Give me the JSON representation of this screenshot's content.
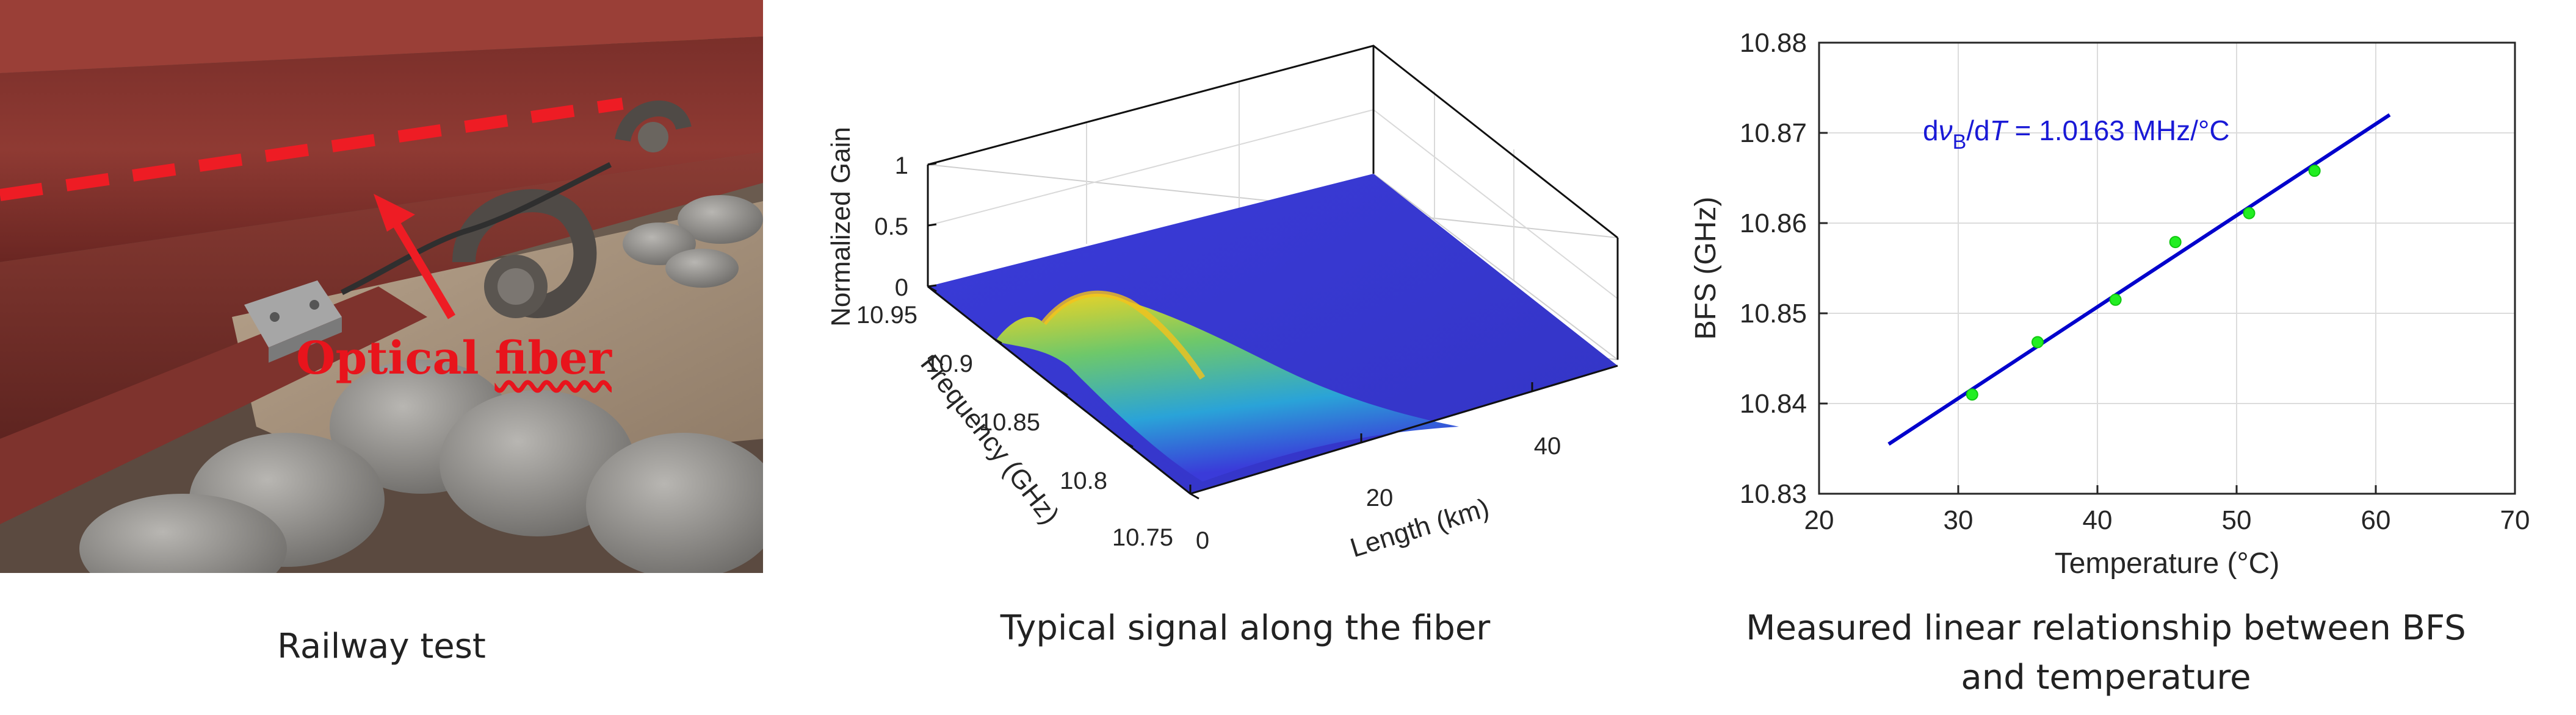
{
  "captions": {
    "left": "Railway test",
    "middle": "Typical signal along the fiber",
    "right_line1": "Measured linear relationship between BFS",
    "right_line2": "and temperature"
  },
  "photo": {
    "annotation": "Optical fiber",
    "annotation_plain": "Optical ",
    "annotation_underlined": "fiber",
    "annotation_color": "#e8141c"
  },
  "surface_plot": {
    "type": "3d-surface",
    "zlabel": "Normalized Gain",
    "ylabel": "Frequency (GHz)",
    "xlabel": "Length (km)",
    "z_ticks": [
      "0",
      "0.5",
      "1"
    ],
    "y_ticks": [
      "10.75",
      "10.8",
      "10.85",
      "10.9",
      "10.95"
    ],
    "x_ticks": [
      "0",
      "20",
      "40"
    ],
    "zlim": [
      0,
      1
    ],
    "ylim": [
      10.75,
      10.95
    ],
    "xlim": [
      0,
      50
    ],
    "colormap": "parula"
  },
  "chart_data": {
    "type": "scatter",
    "xlabel": "Temperature (°C)",
    "ylabel": "BFS (GHz)",
    "annotation": "dνB/dT = 1.0163 MHz/°C",
    "annotation_parts": {
      "d1": "d",
      "nu": "ν",
      "sub": "B",
      "slash": "/d",
      "T": "T",
      "rest": " = 1.0163 MHz/°C"
    },
    "xlim": [
      20,
      70
    ],
    "ylim": [
      10.83,
      10.88
    ],
    "x_ticks": [
      "20",
      "30",
      "40",
      "50",
      "60",
      "70"
    ],
    "y_ticks": [
      "10.83",
      "10.84",
      "10.85",
      "10.86",
      "10.87",
      "10.88"
    ],
    "grid": true,
    "points": {
      "x": [
        31.0,
        35.7,
        41.3,
        45.6,
        50.9,
        55.6
      ],
      "y": [
        10.841,
        10.8468,
        10.8515,
        10.8579,
        10.8611,
        10.8658
      ],
      "color": "#22ee22"
    },
    "fit_line": {
      "x": [
        25,
        61
      ],
      "y": [
        10.8355,
        10.872
      ],
      "color": "#0000cc"
    }
  }
}
